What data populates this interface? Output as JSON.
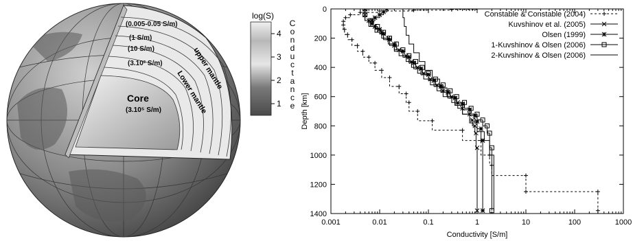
{
  "globe": {
    "core_label": "Core",
    "core_value": "(3.10⁵ S/m)",
    "shell_labels": [
      "(0.005-0.05 S/m)",
      "(1 S/m)",
      "(10 S/m)",
      "(3.10² S/m)"
    ],
    "upper_mantle": "upper mantle",
    "lower_mantle": "Lower mantle"
  },
  "colorbar": {
    "title": "log(S)",
    "side_label": "Conductance",
    "ticks": [
      "4",
      "3",
      "2",
      "1"
    ],
    "range": [
      0.5,
      4.5
    ]
  },
  "chart_data": {
    "type": "line",
    "title": "",
    "xlabel": "Conductivity [S/m]",
    "ylabel": "Depth [km]",
    "xscale": "log",
    "xlim": [
      0.001,
      1000
    ],
    "ylim": [
      1400,
      0
    ],
    "y_inverted": true,
    "xticks": [
      0.001,
      0.01,
      0.1,
      1,
      10,
      100,
      1000
    ],
    "xtick_labels": [
      "0.001",
      "0.01",
      "0.1",
      "1",
      "10",
      "100",
      "1000"
    ],
    "yticks": [
      0,
      200,
      400,
      600,
      800,
      1000,
      1200,
      1400
    ],
    "legend_position": "top-right",
    "series": [
      {
        "name": "Constable & Constable (2004)",
        "style": "dashed-plus",
        "points": [
          [
            1.0,
            0
          ],
          [
            0.3,
            4
          ],
          [
            0.05,
            8
          ],
          [
            0.01,
            14
          ],
          [
            0.004,
            24
          ],
          [
            0.0025,
            40
          ],
          [
            0.002,
            60
          ],
          [
            0.0018,
            85
          ],
          [
            0.0018,
            110
          ],
          [
            0.0019,
            140
          ],
          [
            0.0022,
            175
          ],
          [
            0.0027,
            210
          ],
          [
            0.0035,
            250
          ],
          [
            0.0045,
            290
          ],
          [
            0.006,
            330
          ],
          [
            0.008,
            370
          ],
          [
            0.011,
            420
          ],
          [
            0.016,
            470
          ],
          [
            0.025,
            530
          ],
          [
            0.035,
            580
          ],
          [
            0.04,
            640
          ],
          [
            0.06,
            700
          ],
          [
            0.12,
            765
          ],
          [
            0.5,
            830
          ],
          [
            1.2,
            900
          ],
          [
            1.8,
            1000
          ],
          [
            2.0,
            1070
          ],
          [
            10,
            1140
          ],
          [
            10,
            1250
          ],
          [
            300,
            1250
          ],
          [
            300,
            1380
          ]
        ]
      },
      {
        "name": "Kuvshinov et al. (2005)",
        "style": "solid-x",
        "points": [
          [
            0.005,
            0
          ],
          [
            0.005,
            40
          ],
          [
            0.006,
            80
          ],
          [
            0.008,
            120
          ],
          [
            0.011,
            160
          ],
          [
            0.015,
            200
          ],
          [
            0.02,
            240
          ],
          [
            0.025,
            280
          ],
          [
            0.035,
            320
          ],
          [
            0.045,
            360
          ],
          [
            0.06,
            400
          ],
          [
            0.08,
            440
          ],
          [
            0.11,
            480
          ],
          [
            0.15,
            520
          ],
          [
            0.2,
            560
          ],
          [
            0.3,
            600
          ],
          [
            0.4,
            640
          ],
          [
            0.5,
            680
          ],
          [
            0.7,
            720
          ],
          [
            0.8,
            760
          ],
          [
            0.9,
            800
          ],
          [
            0.95,
            850
          ],
          [
            1.0,
            950
          ],
          [
            1.0,
            1380
          ]
        ]
      },
      {
        "name": "Olsen (1999)",
        "style": "solid-star",
        "points": [
          [
            0.014,
            0
          ],
          [
            0.012,
            20
          ],
          [
            0.01,
            40
          ],
          [
            0.008,
            60
          ],
          [
            0.007,
            80
          ],
          [
            0.007,
            100
          ],
          [
            0.008,
            120
          ],
          [
            0.01,
            140
          ],
          [
            0.012,
            170
          ],
          [
            0.016,
            210
          ],
          [
            0.02,
            250
          ],
          [
            0.03,
            290
          ],
          [
            0.04,
            330
          ],
          [
            0.05,
            370
          ],
          [
            0.07,
            410
          ],
          [
            0.1,
            450
          ],
          [
            0.13,
            490
          ],
          [
            0.18,
            530
          ],
          [
            0.25,
            570
          ],
          [
            0.35,
            610
          ],
          [
            0.5,
            650
          ],
          [
            0.7,
            690
          ],
          [
            0.9,
            730
          ],
          [
            1.0,
            770
          ],
          [
            1.2,
            820
          ],
          [
            1.3,
            900
          ],
          [
            1.3,
            1380
          ]
        ]
      },
      {
        "name": "1-Kuvshinov & Olsen (2006)",
        "style": "solid-square",
        "points": [
          [
            0.005,
            0
          ],
          [
            0.005,
            40
          ],
          [
            0.0065,
            80
          ],
          [
            0.009,
            120
          ],
          [
            0.012,
            160
          ],
          [
            0.016,
            200
          ],
          [
            0.022,
            240
          ],
          [
            0.03,
            280
          ],
          [
            0.04,
            320
          ],
          [
            0.055,
            360
          ],
          [
            0.075,
            400
          ],
          [
            0.1,
            440
          ],
          [
            0.14,
            480
          ],
          [
            0.2,
            520
          ],
          [
            0.28,
            560
          ],
          [
            0.38,
            600
          ],
          [
            0.55,
            640
          ],
          [
            0.75,
            680
          ],
          [
            1.0,
            720
          ],
          [
            1.3,
            760
          ],
          [
            1.6,
            800
          ],
          [
            1.8,
            850
          ],
          [
            2.0,
            950
          ],
          [
            2.0,
            1380
          ]
        ]
      },
      {
        "name": "2-Kuvshinov & Olsen (2006)",
        "style": "solid",
        "points": [
          [
            0.03,
            0
          ],
          [
            0.032,
            60
          ],
          [
            0.035,
            120
          ],
          [
            0.04,
            180
          ],
          [
            0.05,
            240
          ],
          [
            0.065,
            300
          ],
          [
            0.085,
            360
          ],
          [
            0.12,
            420
          ],
          [
            0.17,
            480
          ],
          [
            0.24,
            540
          ],
          [
            0.35,
            600
          ],
          [
            0.5,
            660
          ],
          [
            0.7,
            720
          ],
          [
            1.0,
            780
          ],
          [
            1.4,
            840
          ],
          [
            1.8,
            900
          ],
          [
            2.2,
            1000
          ],
          [
            2.2,
            1380
          ]
        ]
      }
    ]
  }
}
